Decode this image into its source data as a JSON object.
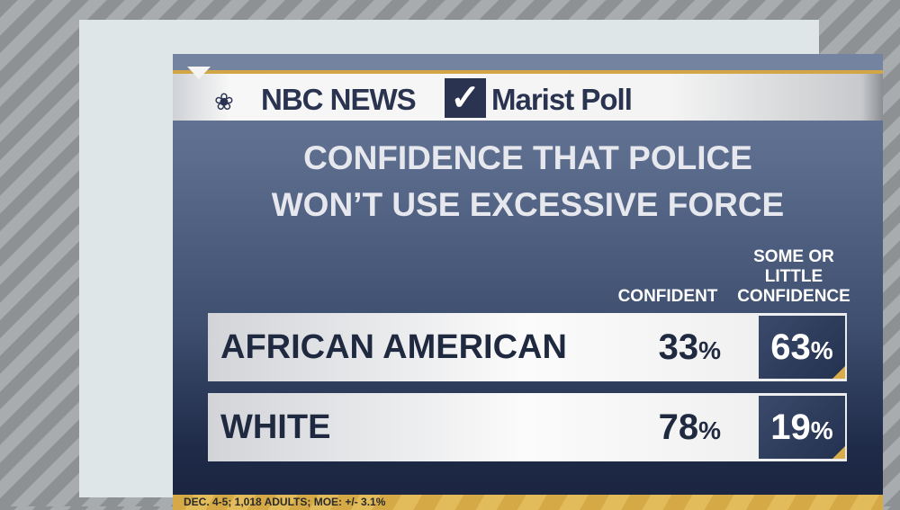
{
  "header": {
    "brand1": "NBC NEWS",
    "brand2": "Marist Poll"
  },
  "chart_data": {
    "type": "table",
    "title": "CONFIDENCE THAT POLICE WON'T USE EXCESSIVE FORCE",
    "title_lines": [
      "CONFIDENCE THAT POLICE",
      "WON’T USE EXCESSIVE FORCE"
    ],
    "columns": [
      "CONFIDENT",
      "SOME OR LITTLE CONFIDENCE"
    ],
    "column_lines": {
      "confident": [
        "CONFIDENT"
      ],
      "some": [
        "SOME OR",
        "LITTLE",
        "CONFIDENCE"
      ]
    },
    "rows": [
      {
        "label": "AFRICAN AMERICAN",
        "confident": "33",
        "some": "63"
      },
      {
        "label": "WHITE",
        "confident": "78",
        "some": "19"
      }
    ],
    "unit": "%"
  },
  "footer": "DEC. 4-5; 1,018 ADULTS; MOE: +/- 3.1%",
  "colors": {
    "gold": "#d3a645",
    "navy": "#1e2a47",
    "text_dark": "#1f2940"
  }
}
